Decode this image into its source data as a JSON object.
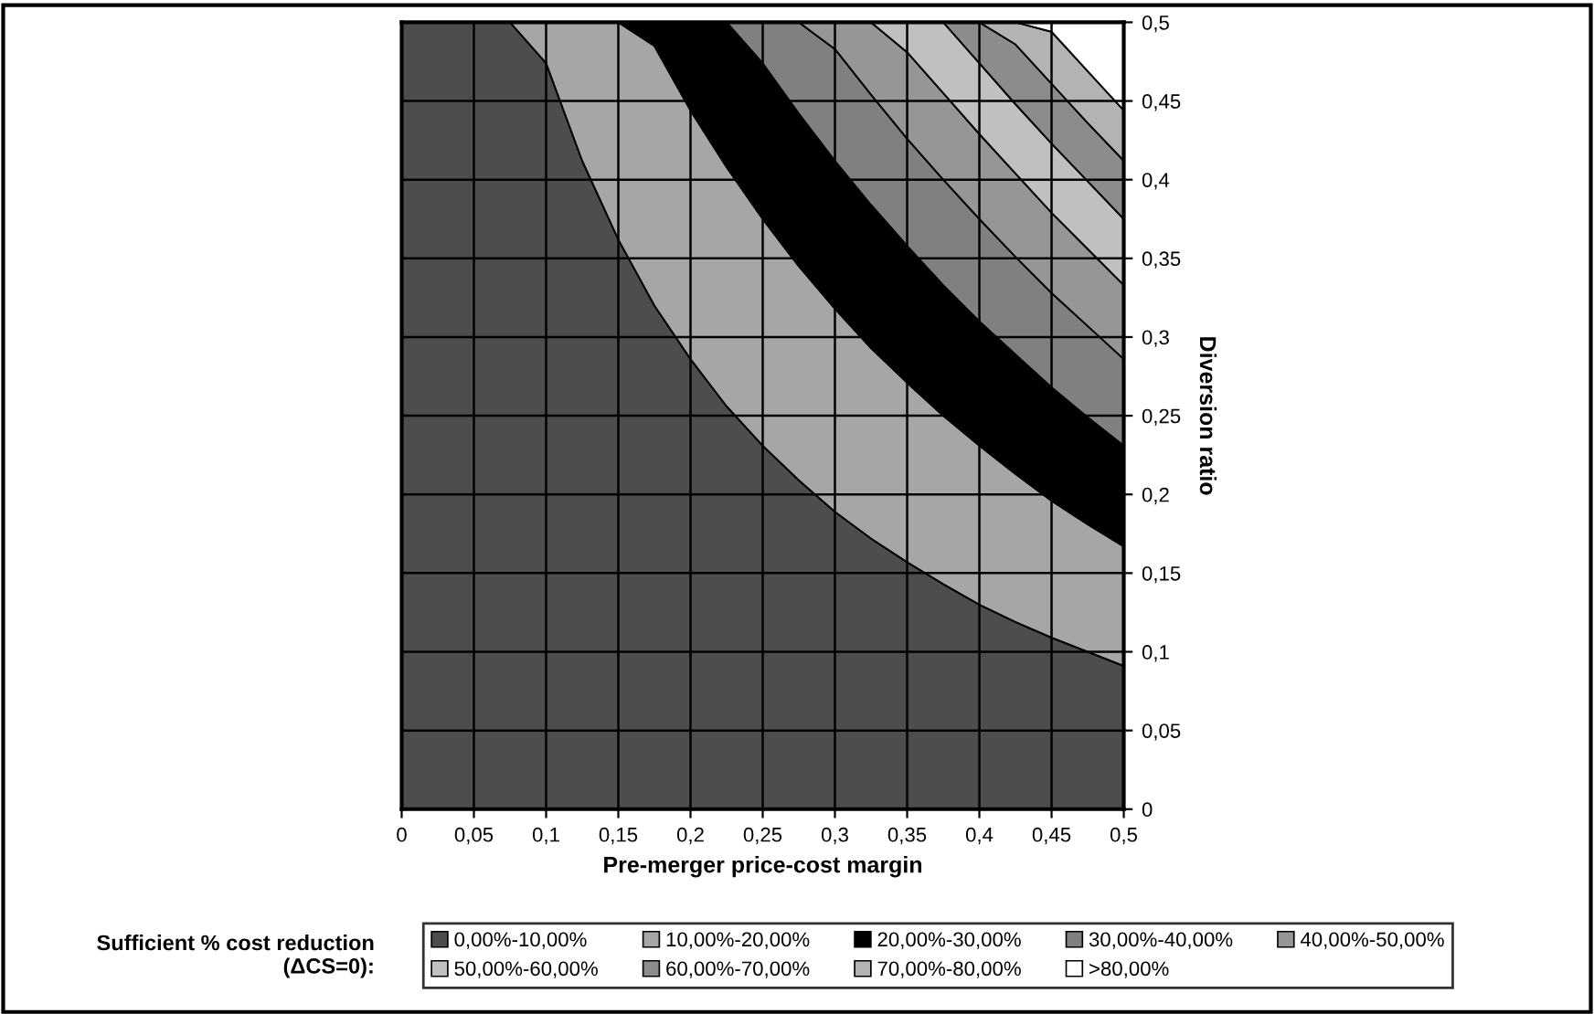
{
  "chart_data": {
    "type": "area",
    "stacked": true,
    "xlabel": "Pre-merger price-cost margin",
    "ylabel": "Diversion ratio",
    "legend_title": "Sufficient % cost reduction (ΔCS=0):",
    "x": [
      0,
      0.025,
      0.05,
      0.075,
      0.1,
      0.125,
      0.15,
      0.175,
      0.2,
      0.225,
      0.25,
      0.275,
      0.3,
      0.325,
      0.35,
      0.375,
      0.4,
      0.425,
      0.45,
      0.475,
      0.5
    ],
    "xlim": [
      0,
      0.5
    ],
    "xticks": [
      0,
      {
        "value": 0.05,
        "label": "0,05"
      },
      {
        "value": 0.1,
        "label": "0,1"
      },
      {
        "value": 0.15,
        "label": "0,15"
      },
      {
        "value": 0.2,
        "label": "0,2"
      },
      {
        "value": 0.25,
        "label": "0,25"
      },
      {
        "value": 0.3,
        "label": "0,3"
      },
      {
        "value": 0.35,
        "label": "0,35"
      },
      {
        "value": 0.4,
        "label": "0,4"
      },
      {
        "value": 0.45,
        "label": "0,45"
      },
      {
        "value": 0.5,
        "label": "0,5"
      }
    ],
    "ylim": [
      0,
      0.5
    ],
    "yticks": [
      0,
      {
        "value": 0.05,
        "label": "0,05"
      },
      {
        "value": 0.1,
        "label": "0,1"
      },
      {
        "value": 0.15,
        "label": "0,15"
      },
      {
        "value": 0.2,
        "label": "0,2"
      },
      {
        "value": 0.25,
        "label": "0,25"
      },
      {
        "value": 0.3,
        "label": "0,3"
      },
      {
        "value": 0.35,
        "label": "0,35"
      },
      {
        "value": 0.4,
        "label": "0,4"
      },
      {
        "value": 0.45,
        "label": "0,45"
      },
      {
        "value": 0.5,
        "label": "0,5"
      }
    ],
    "series": [
      {
        "name": "0,00%-10,00%",
        "color": "#4d4d4d",
        "values": [
          0.5,
          0.5,
          0.5,
          0.5,
          0.474,
          0.412,
          0.362,
          0.32,
          0.286,
          0.256,
          0.231,
          0.209,
          0.189,
          0.172,
          0.157,
          0.143,
          0.13,
          0.119,
          0.109,
          0.1,
          0.091
        ]
      },
      {
        "name": "10,00%-20,00%",
        "color": "#a6a6a6",
        "values": [
          0,
          0,
          0,
          0,
          0.026,
          0.088,
          0.138,
          0.165,
          0.158,
          0.152,
          0.144,
          0.136,
          0.129,
          0.121,
          0.114,
          0.107,
          0.101,
          0.094,
          0.087,
          0.081,
          0.076
        ]
      },
      {
        "name": "20,00%-30,00%",
        "color": "#000000",
        "values": [
          0,
          0,
          0,
          0,
          0,
          0,
          0,
          0.015,
          0.056,
          0.092,
          0.099,
          0.097,
          0.094,
          0.091,
          0.087,
          0.083,
          0.079,
          0.076,
          0.072,
          0.068,
          0.064
        ]
      },
      {
        "name": "30,00%-40,00%",
        "color": "#808080",
        "values": [
          0,
          0,
          0,
          0,
          0,
          0,
          0,
          0,
          0,
          0,
          0.026,
          0.058,
          0.071,
          0.07,
          0.068,
          0.067,
          0.065,
          0.062,
          0.06,
          0.058,
          0.055
        ]
      },
      {
        "name": "40,00%-50,00%",
        "color": "#969696",
        "values": [
          0,
          0,
          0,
          0,
          0,
          0,
          0,
          0,
          0,
          0,
          0,
          0,
          0.017,
          0.046,
          0.055,
          0.055,
          0.054,
          0.053,
          0.051,
          0.049,
          0.047
        ]
      },
      {
        "name": "50,00%-60,00%",
        "color": "#c0c0c0",
        "values": [
          0,
          0,
          0,
          0,
          0,
          0,
          0,
          0,
          0,
          0,
          0,
          0,
          0,
          0,
          0.019,
          0.045,
          0.045,
          0.044,
          0.044,
          0.043,
          0.042
        ]
      },
      {
        "name": "60,00%-70,00%",
        "color": "#8c8c8c",
        "values": [
          0,
          0,
          0,
          0,
          0,
          0,
          0,
          0,
          0,
          0,
          0,
          0,
          0,
          0,
          0,
          0,
          0.026,
          0.038,
          0.038,
          0.037,
          0.037
        ]
      },
      {
        "name": "70,00%-80,00%",
        "color": "#b3b3b3",
        "values": [
          0,
          0,
          0,
          0,
          0,
          0,
          0,
          0,
          0,
          0,
          0,
          0,
          0,
          0,
          0,
          0,
          0,
          0.014,
          0.033,
          0.033,
          0.032
        ]
      },
      {
        "name": ">80,00%",
        "color": "#ffffff",
        "values": [
          0,
          0,
          0,
          0,
          0,
          0,
          0,
          0,
          0,
          0,
          0,
          0,
          0,
          0,
          0,
          0,
          0,
          0,
          0.006,
          0.031,
          0.056
        ]
      }
    ],
    "grid": true,
    "legend": "bottom"
  }
}
